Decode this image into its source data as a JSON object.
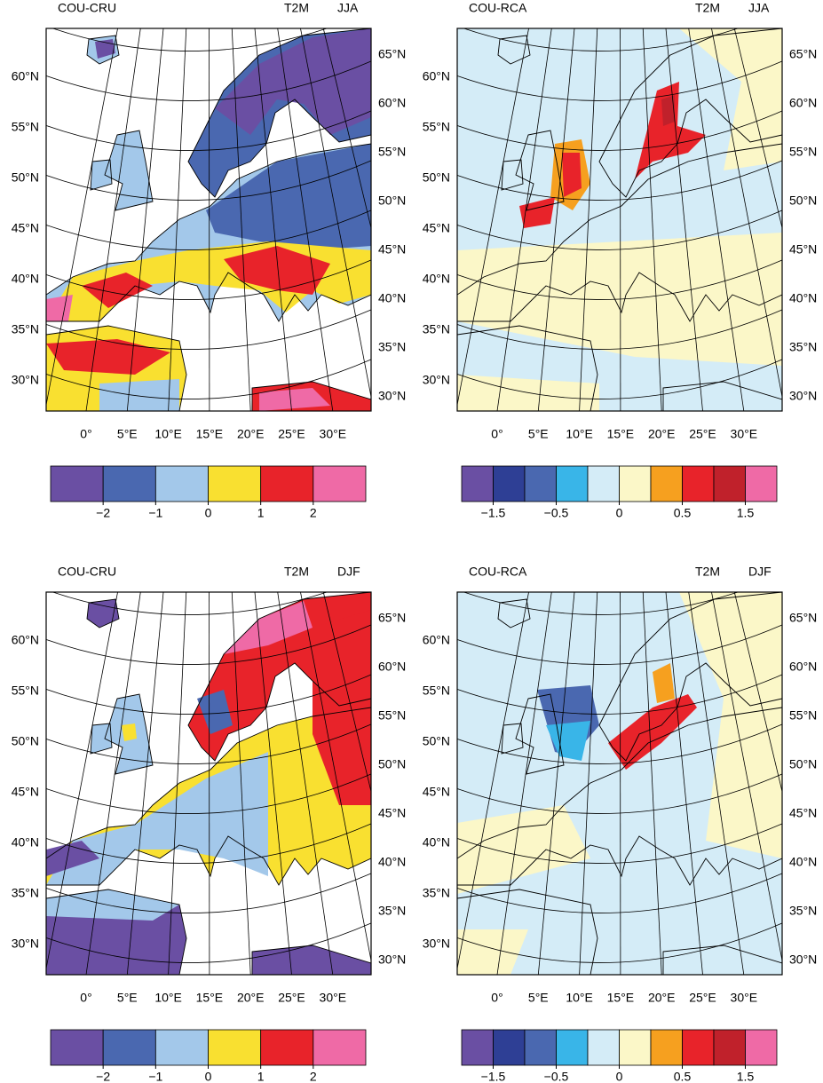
{
  "panels": [
    {
      "label": "COU-CRU",
      "variable": "T2M",
      "season": "JJA",
      "lat_labels_left": [
        "60°N",
        "55°N",
        "50°N",
        "45°N",
        "40°N",
        "35°N",
        "30°N"
      ],
      "lat_labels_right": [
        "65°N",
        "60°N",
        "55°N",
        "50°N",
        "45°N",
        "40°N",
        "35°N",
        "30°N"
      ],
      "lon_labels": [
        "0°",
        "5°E",
        "10°E",
        "15°E",
        "20°E",
        "25°E",
        "30°E"
      ],
      "colorbar": {
        "colors": [
          "#6a4fa3",
          "#4a68b0",
          "#a3c8ea",
          "#f9e030",
          "#e8232a",
          "#ef6aa6"
        ],
        "ticks": [
          {
            "value": -2,
            "label": "−2"
          },
          {
            "value": -1,
            "label": "−1"
          },
          0,
          1,
          2
        ]
      }
    },
    {
      "label": "COU-RCA",
      "variable": "T2M",
      "season": "JJA",
      "lat_labels_left": [
        "60°N",
        "55°N",
        "50°N",
        "45°N",
        "40°N",
        "35°N",
        "30°N"
      ],
      "lat_labels_right": [
        "65°N",
        "60°N",
        "55°N",
        "50°N",
        "45°N",
        "40°N",
        "35°N",
        "30°N"
      ],
      "lon_labels": [
        "0°",
        "5°E",
        "10°E",
        "15°E",
        "20°E",
        "25°E",
        "30°E"
      ],
      "colorbar": {
        "colors": [
          "#6a4fa3",
          "#2e3f95",
          "#4a68b0",
          "#39b5e8",
          "#d4ecf7",
          "#fbf7c8",
          "#f6a01f",
          "#e8232a",
          "#c0212b",
          "#ef6aa6"
        ],
        "ticks": [
          {
            "value": -1.5,
            "label": "−1.5"
          },
          {
            "value": -0.5,
            "label": "−0.5"
          },
          0,
          0.5,
          1.5
        ]
      }
    },
    {
      "label": "COU-CRU",
      "variable": "T2M",
      "season": "DJF",
      "lat_labels_left": [
        "60°N",
        "55°N",
        "50°N",
        "45°N",
        "40°N",
        "35°N",
        "30°N"
      ],
      "lat_labels_right": [
        "65°N",
        "60°N",
        "55°N",
        "50°N",
        "45°N",
        "40°N",
        "35°N",
        "30°N"
      ],
      "lon_labels": [
        "0°",
        "5°E",
        "10°E",
        "15°E",
        "20°E",
        "25°E",
        "30°E"
      ],
      "colorbar": {
        "colors": [
          "#6a4fa3",
          "#4a68b0",
          "#a3c8ea",
          "#f9e030",
          "#e8232a",
          "#ef6aa6"
        ],
        "ticks": [
          {
            "value": -2,
            "label": "−2"
          },
          {
            "value": -1,
            "label": "−1"
          },
          0,
          1,
          2
        ]
      }
    },
    {
      "label": "COU-RCA",
      "variable": "T2M",
      "season": "DJF",
      "lat_labels_left": [
        "60°N",
        "55°N",
        "50°N",
        "45°N",
        "40°N",
        "35°N",
        "30°N"
      ],
      "lat_labels_right": [
        "65°N",
        "60°N",
        "55°N",
        "50°N",
        "45°N",
        "40°N",
        "35°N",
        "30°N"
      ],
      "lon_labels": [
        "0°",
        "5°E",
        "10°E",
        "15°E",
        "20°E",
        "25°E",
        "30°E"
      ],
      "colorbar": {
        "colors": [
          "#6a4fa3",
          "#2e3f95",
          "#4a68b0",
          "#39b5e8",
          "#d4ecf7",
          "#fbf7c8",
          "#f6a01f",
          "#e8232a",
          "#c0212b",
          "#ef6aa6"
        ],
        "ticks": [
          {
            "value": -1.5,
            "label": "−1.5"
          },
          {
            "value": -0.5,
            "label": "−0.5"
          },
          0,
          0.5,
          1.5
        ]
      }
    }
  ]
}
